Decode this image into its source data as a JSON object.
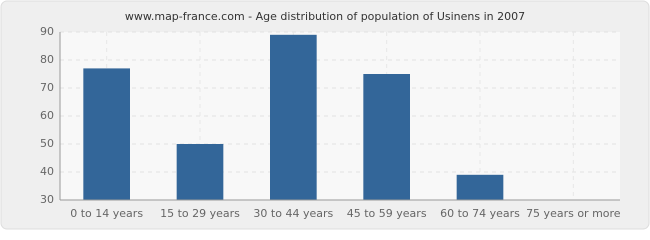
{
  "chart_data": {
    "type": "bar",
    "title": "www.map-france.com - Age distribution of population of Usinens in 2007",
    "categories": [
      "0 to 14 years",
      "15 to 29 years",
      "30 to 44 years",
      "45 to 59 years",
      "60 to 74 years",
      "75 years or more"
    ],
    "values": [
      77,
      50,
      89,
      75,
      39,
      30
    ],
    "color": "#336699",
    "ylim": [
      30,
      90
    ],
    "yticks": [
      30,
      40,
      50,
      60,
      70,
      80,
      90
    ],
    "grid": true
  }
}
